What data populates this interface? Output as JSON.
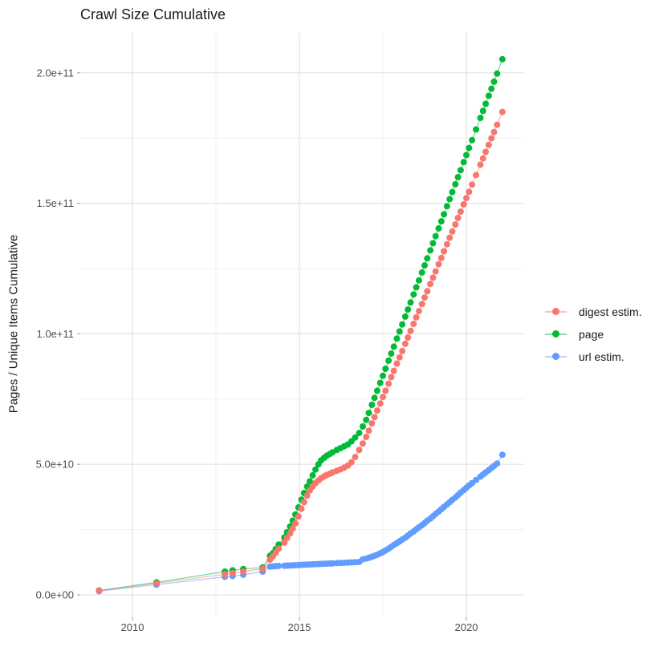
{
  "title": "Crawl Size Cumulative",
  "legend": {
    "entries": [
      {
        "label": "digest estim.",
        "color": "#F8766D"
      },
      {
        "label": "page",
        "color": "#00BA38"
      },
      {
        "label": "url estim.",
        "color": "#619CFF"
      }
    ]
  },
  "chart_data": {
    "type": "scatter",
    "title": "Crawl Size Cumulative",
    "xlabel": "",
    "ylabel": "Pages / Unique Items Cumulative",
    "unit": "values in billions (1e9) of pages / unique items, cumulative",
    "xlim": [
      2008.44,
      2021.73
    ],
    "ylim_e9": [
      -8.6,
      215.4
    ],
    "grid": "major+minor",
    "legend_position": "right",
    "x_ticks": {
      "values": [
        2010,
        2015,
        2020
      ],
      "labels": [
        "2010",
        "2015",
        "2020"
      ]
    },
    "x_minor": [
      2012.5,
      2017.5
    ],
    "y_ticks": {
      "values_e9": [
        0,
        50,
        100,
        150,
        200
      ],
      "labels": [
        "0.0e+00",
        "5.0e+10",
        "1.0e+11",
        "1.5e+11",
        "2.0e+11"
      ]
    },
    "y_minor_e9": [
      25,
      75,
      125,
      175
    ],
    "draw_order": [
      "url estim.",
      "page",
      "digest estim."
    ],
    "x": [
      2009.0,
      2010.72,
      2012.77,
      2013.0,
      2013.32,
      2013.9,
      2014.12,
      2014.21,
      2014.29,
      2014.38,
      2014.55,
      2014.63,
      2014.72,
      2014.8,
      2014.88,
      2014.97,
      2015.06,
      2015.14,
      2015.23,
      2015.31,
      2015.4,
      2015.48,
      2015.57,
      2015.65,
      2015.74,
      2015.82,
      2015.91,
      2015.99,
      2016.12,
      2016.23,
      2016.34,
      2016.45,
      2016.56,
      2016.67,
      2016.79,
      2016.9,
      2017.0,
      2017.08,
      2017.17,
      2017.25,
      2017.33,
      2017.42,
      2017.5,
      2017.58,
      2017.67,
      2017.75,
      2017.83,
      2017.92,
      2018.0,
      2018.08,
      2018.17,
      2018.25,
      2018.33,
      2018.42,
      2018.5,
      2018.58,
      2018.67,
      2018.75,
      2018.83,
      2018.92,
      2019.0,
      2019.08,
      2019.17,
      2019.25,
      2019.33,
      2019.42,
      2019.5,
      2019.58,
      2019.67,
      2019.75,
      2019.83,
      2019.92,
      2020.0,
      2020.08,
      2020.17,
      2020.29,
      2020.42,
      2020.5,
      2020.58,
      2020.67,
      2020.75,
      2020.83,
      2020.92,
      2021.08
    ],
    "series": [
      {
        "name": "digest estim.",
        "color": "#F8766D",
        "values_e9": [
          1.6,
          4.4,
          7.9,
          8.3,
          8.9,
          10.0,
          13.5,
          14.8,
          16.2,
          17.7,
          20.0,
          21.8,
          23.6,
          25.4,
          27.4,
          30.0,
          33.0,
          35.5,
          38.0,
          40.0,
          41.5,
          42.8,
          43.8,
          44.7,
          45.4,
          45.9,
          46.4,
          46.9,
          47.5,
          48.1,
          48.7,
          49.5,
          50.8,
          52.8,
          55.5,
          58.0,
          60.5,
          62.9,
          65.7,
          68.1,
          70.6,
          73.3,
          75.8,
          78.2,
          80.9,
          83.4,
          85.8,
          88.6,
          91.0,
          93.4,
          96.2,
          98.6,
          101.1,
          103.8,
          106.3,
          108.7,
          111.4,
          113.9,
          116.3,
          119.1,
          121.5,
          123.9,
          126.7,
          129.1,
          131.6,
          134.3,
          136.8,
          139.2,
          141.9,
          144.4,
          146.8,
          149.6,
          152.0,
          154.4,
          157.2,
          160.8,
          164.8,
          167.2,
          169.7,
          172.4,
          174.9,
          177.3,
          180.1,
          185.0
        ]
      },
      {
        "name": "page",
        "color": "#00BA38",
        "values_e9": [
          1.7,
          4.8,
          8.9,
          9.4,
          9.9,
          10.5,
          15.0,
          16.0,
          17.5,
          19.3,
          22.0,
          24.0,
          26.2,
          28.4,
          30.8,
          33.5,
          36.5,
          39.0,
          41.5,
          43.5,
          45.8,
          48.0,
          50.0,
          51.5,
          52.5,
          53.3,
          54.0,
          54.6,
          55.5,
          56.2,
          56.9,
          57.6,
          58.8,
          60.3,
          62.0,
          64.5,
          67.0,
          69.7,
          72.8,
          75.5,
          78.2,
          81.2,
          83.9,
          86.6,
          89.7,
          92.4,
          95.1,
          98.2,
          100.9,
          103.6,
          106.6,
          109.3,
          112.0,
          115.1,
          117.8,
          120.5,
          123.5,
          126.2,
          128.9,
          132.0,
          134.7,
          137.4,
          140.4,
          143.1,
          145.8,
          148.9,
          151.6,
          154.3,
          157.3,
          160.0,
          162.7,
          165.8,
          168.5,
          171.2,
          174.2,
          178.3,
          182.7,
          185.4,
          188.1,
          191.2,
          193.9,
          196.6,
          199.7,
          205.2
        ]
      },
      {
        "name": "url estim.",
        "color": "#619CFF",
        "values_e9": [
          1.4,
          3.9,
          6.9,
          7.2,
          7.7,
          8.9,
          10.8,
          10.9,
          11.0,
          11.1,
          11.15,
          11.2,
          11.25,
          11.3,
          11.35,
          11.4,
          11.5,
          11.55,
          11.6,
          11.65,
          11.7,
          11.75,
          11.8,
          11.85,
          11.9,
          11.95,
          12.0,
          12.05,
          12.15,
          12.2,
          12.3,
          12.35,
          12.45,
          12.5,
          12.6,
          13.6,
          13.9,
          14.2,
          14.6,
          15.0,
          15.4,
          15.9,
          16.4,
          17.0,
          17.7,
          18.4,
          19.1,
          19.8,
          20.5,
          21.2,
          21.9,
          22.7,
          23.5,
          24.3,
          25.1,
          25.9,
          26.7,
          27.5,
          28.4,
          29.2,
          30.1,
          31.0,
          31.9,
          32.8,
          33.7,
          34.6,
          35.5,
          36.4,
          37.3,
          38.2,
          39.2,
          40.1,
          41.0,
          41.9,
          42.8,
          44.0,
          45.3,
          46.1,
          46.9,
          47.8,
          48.6,
          49.4,
          50.3,
          53.7
        ]
      }
    ]
  }
}
